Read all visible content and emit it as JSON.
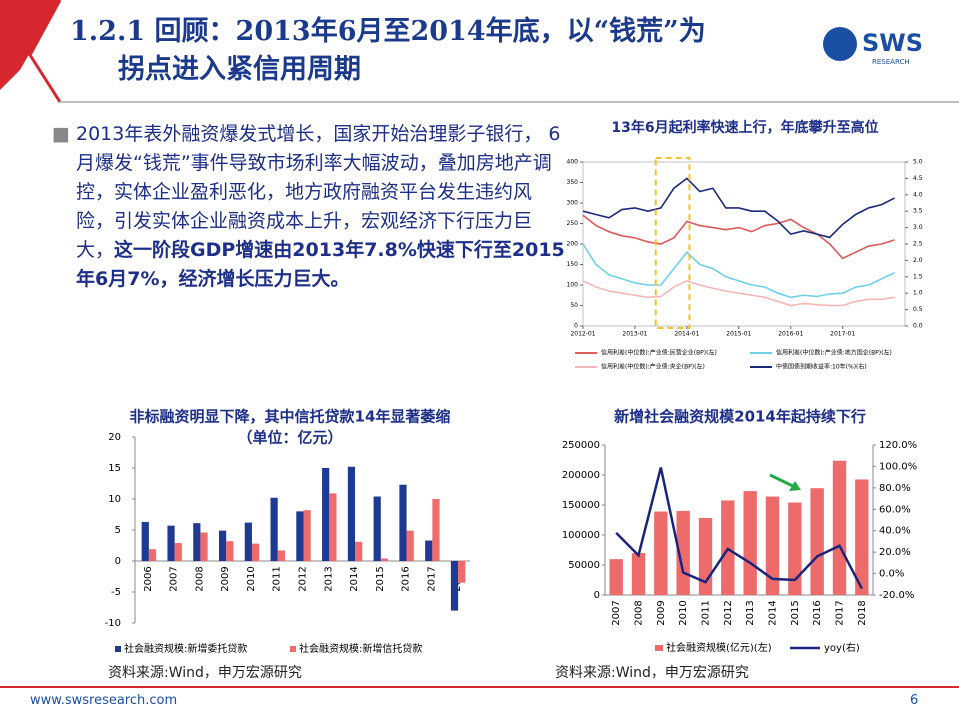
{
  "header": {
    "title_lines": [
      "1.2.1 回顾：2013年6月至2014年底，以“钱荒”为",
      "拐点进入紧信用周期"
    ],
    "logo": "SWS",
    "logo_sub": "RESEARCH"
  },
  "bullet": {
    "text": "2013年表外融资爆发式增长，国家开始治理影子银行， 6月爆发“钱荒”事件导致市场利率大幅波动，叠加房地产调控，实体企业盈利恶化，地方政府融资平台发生违约风险，引发实体企业融资成本上升，宏观经济下行压力巨大，",
    "bold": "这一阶段GDP增速由2013年7.8%快速下行至2015年6月7%，经济增长压力巨大。"
  },
  "chart_data": [
    {
      "type": "line",
      "title": "13年6月起利率快速上行，年底攀升至高位",
      "x": [
        2012,
        2012.25,
        2012.5,
        2012.75,
        2013,
        2013.25,
        2013.5,
        2013.75,
        2014,
        2014.25,
        2014.5,
        2014.75,
        2015,
        2015.25,
        2015.5,
        2015.75,
        2016,
        2016.25,
        2016.5,
        2016.75,
        2017,
        2017.25,
        2017.5,
        2017.75,
        2018
      ],
      "xlim": [
        2012,
        2018.2
      ],
      "xticks": [
        {
          "value": 2012,
          "label": "2012-01"
        },
        {
          "value": 2013,
          "label": "2013-01"
        },
        {
          "value": 2014,
          "label": "2014-01"
        },
        {
          "value": 2015,
          "label": "2015-01"
        },
        {
          "value": 2016,
          "label": "2016-01"
        },
        {
          "value": 2017,
          "label": "2017-01"
        }
      ],
      "ylim": [
        0,
        400
      ],
      "yticks": [
        0,
        50,
        100,
        150,
        200,
        250,
        300,
        350,
        400
      ],
      "y2lim": [
        0,
        5
      ],
      "y2ticks": [
        {
          "value": 0,
          "label": "0.0"
        },
        {
          "value": 0.5,
          "label": "0.5"
        },
        {
          "value": 1,
          "label": "1.0"
        },
        {
          "value": 1.5,
          "label": "1.5"
        },
        {
          "value": 2,
          "label": "2.0"
        },
        {
          "value": 2.5,
          "label": "2.5"
        },
        {
          "value": 3,
          "label": "3.0"
        },
        {
          "value": 3.5,
          "label": "3.5"
        },
        {
          "value": 4,
          "label": "4.0"
        },
        {
          "value": 4.5,
          "label": "4.5"
        },
        {
          "value": 5,
          "label": "5.0"
        }
      ],
      "series": [
        {
          "name": "信用利差(中位数):产业债:民营企业(BP)(左)",
          "color": "#e05a5a",
          "values": [
            270,
            245,
            230,
            220,
            215,
            205,
            200,
            215,
            255,
            245,
            240,
            235,
            240,
            230,
            245,
            250,
            260,
            240,
            225,
            200,
            165,
            180,
            195,
            200,
            210
          ]
        },
        {
          "name": "信用利差(中位数):产业债:地方国企(BP)(左)",
          "color": "#6fd0ec",
          "values": [
            200,
            150,
            125,
            115,
            105,
            100,
            100,
            140,
            180,
            150,
            140,
            120,
            110,
            100,
            95,
            80,
            70,
            75,
            72,
            78,
            80,
            95,
            100,
            115,
            130
          ]
        },
        {
          "name": "信用利差(中位数):产业债:央企(BP)(左)",
          "color": "#f4b6b6",
          "values": [
            110,
            95,
            85,
            80,
            75,
            70,
            72,
            95,
            110,
            100,
            92,
            85,
            80,
            75,
            70,
            60,
            50,
            55,
            52,
            50,
            50,
            60,
            65,
            65,
            70
          ]
        },
        {
          "name": "中债国债到期收益率:10年(%)(右)",
          "color": "#1a2a7a",
          "axis": "y2",
          "values": [
            3.5,
            3.4,
            3.3,
            3.55,
            3.6,
            3.5,
            3.6,
            4.2,
            4.5,
            4.1,
            4.2,
            3.6,
            3.6,
            3.5,
            3.5,
            3.2,
            2.8,
            2.9,
            2.8,
            2.7,
            3.1,
            3.4,
            3.6,
            3.7,
            3.9
          ]
        }
      ]
    },
    {
      "type": "bar",
      "title": "非标融资明显下降，其中信托贷款14年显著萎缩",
      "subtitle": "（单位：亿元）",
      "categories": [
        "2006",
        "2007",
        "2008",
        "2009",
        "2010",
        "2011",
        "2012",
        "2013",
        "2014",
        "2015",
        "2016",
        "2017",
        "2018"
      ],
      "ylim": [
        -10,
        20
      ],
      "yticks": [
        -10,
        -5,
        0,
        5,
        10,
        15,
        20
      ],
      "series": [
        {
          "name": "社会融资规模:新增委托贷款",
          "color": "#1f3a93",
          "values": [
            6.3,
            5.7,
            6.1,
            4.9,
            6.2,
            10.2,
            8.0,
            15.0,
            15.2,
            10.4,
            12.3,
            3.3,
            -8.0
          ]
        },
        {
          "name": "社会融资规模:新增信托贷款",
          "color": "#f06b6b",
          "values": [
            1.9,
            2.9,
            4.6,
            3.2,
            2.8,
            1.7,
            8.2,
            10.9,
            3.1,
            0.4,
            4.9,
            10.0,
            -3.5
          ]
        }
      ],
      "source": "资料来源:Wind，申万宏源研究"
    },
    {
      "type": "combo",
      "title": "新增社会融资规模2014年起持续下行",
      "categories": [
        "2007",
        "2008",
        "2009",
        "2010",
        "2011",
        "2012",
        "2013",
        "2014",
        "2015",
        "2016",
        "2017",
        "2018"
      ],
      "ylim": [
        0,
        250000
      ],
      "yticks": [
        0,
        50000,
        100000,
        150000,
        200000,
        250000
      ],
      "y2lim": [
        -20,
        120
      ],
      "y2ticks": [
        {
          "value": -20,
          "label": "-20.0%"
        },
        {
          "value": 0,
          "label": "0.0%"
        },
        {
          "value": 20,
          "label": "20.0%"
        },
        {
          "value": 40,
          "label": "40.0%"
        },
        {
          "value": 60,
          "label": "60.0%"
        },
        {
          "value": 80,
          "label": "80.0%"
        },
        {
          "value": 100,
          "label": "100.0%"
        },
        {
          "value": 120,
          "label": "120.0%"
        }
      ],
      "series": [
        {
          "name": "社会融资规模(亿元)(左)",
          "color": "#ee6b6b",
          "values": [
            59700,
            69800,
            139100,
            140200,
            128300,
            157600,
            173200,
            164100,
            154100,
            178000,
            223800,
            192600
          ]
        },
        {
          "name": "yoy(右)",
          "color": "#1a237e",
          "axis": "y2",
          "values": [
            38,
            17,
            99,
            1,
            -8,
            23,
            10,
            -5,
            -6,
            16,
            26,
            -14
          ]
        }
      ],
      "source": "资料来源:Wind，申万宏源研究"
    }
  ],
  "footer": {
    "url": "www.swsresearch.com",
    "page": "6"
  }
}
